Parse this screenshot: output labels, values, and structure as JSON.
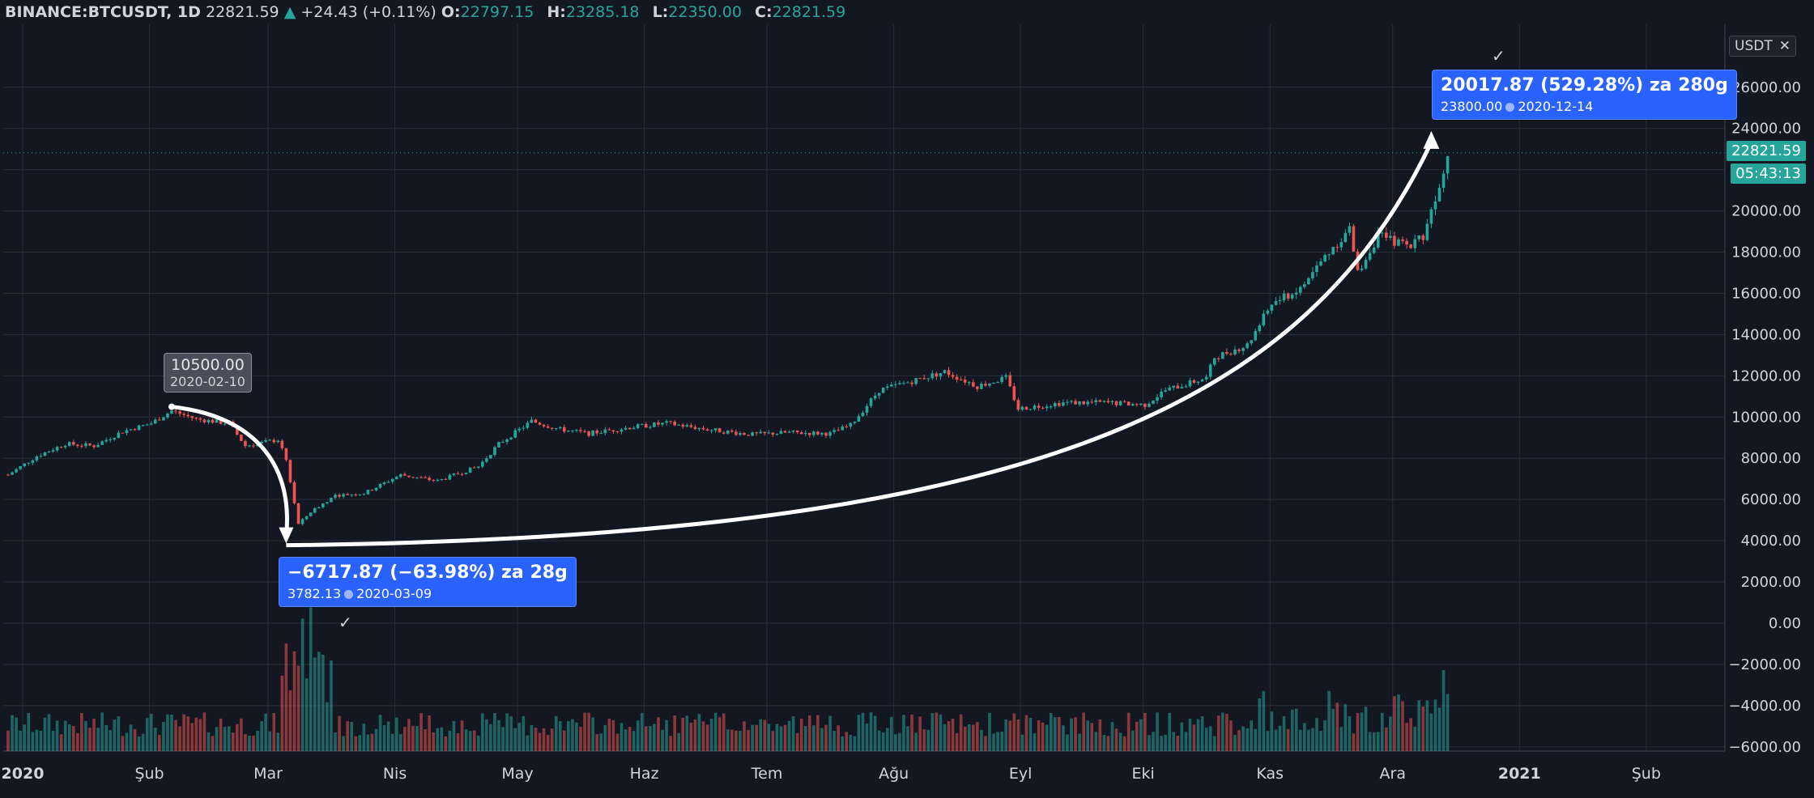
{
  "legend": {
    "symbol": "BINANCE:BTCUSDT, 1D",
    "last": "22821.59",
    "change": "+24.43 (+0.11%)",
    "open_key": "O:",
    "open": "22797.15",
    "high_key": "H:",
    "high": "23285.18",
    "low_key": "L:",
    "low": "22350.00",
    "close_key": "C:",
    "close": "22821.59"
  },
  "currency_button": {
    "label": "USDT",
    "close": "✕"
  },
  "colors": {
    "background": "#131722",
    "up": "#26a69a",
    "down": "#ef5350",
    "grid": "#2a2e39",
    "measure": "#2962ff",
    "arrow": "#ffffff"
  },
  "markers": {
    "high": {
      "price": "10500.00",
      "date": "2020-02-10"
    },
    "drop": {
      "line1": "−6717.87 (−63.98%) za 28g",
      "value": "3782.13",
      "date": "2020-03-09"
    },
    "rise": {
      "line1": "20017.87 (529.28%) za 280g",
      "value": "23800.00",
      "date": "2020-12-14"
    }
  },
  "badges": {
    "last_price": "22821.59",
    "countdown": "05:43:13"
  },
  "chart_data": {
    "type": "candlestick",
    "symbol": "BINANCE:BTCUSDT",
    "interval": "1D",
    "x_tick_labels": [
      "2020",
      "Şub",
      "Mar",
      "Nis",
      "May",
      "Haz",
      "Tem",
      "Ağu",
      "Eyl",
      "Eki",
      "Kas",
      "Ara",
      "2021",
      "Şub"
    ],
    "y_tick_labels": [
      "26000.00",
      "24000.00",
      "22000.00",
      "20000.00",
      "18000.00",
      "16000.00",
      "14000.00",
      "12000.00",
      "10000.00",
      "8000.00",
      "6000.00",
      "4000.00",
      "2000.00",
      "0.00",
      "−2000.00",
      "−4000.00",
      "−6000.00"
    ],
    "ylim": [
      -6500,
      28000
    ],
    "y_top_label": "2",
    "grid": true,
    "close_series_anchors": [
      {
        "date": "2020-01-01",
        "close": 7200
      },
      {
        "date": "2020-01-08",
        "close": 8100
      },
      {
        "date": "2020-01-15",
        "close": 8700
      },
      {
        "date": "2020-01-22",
        "close": 8600
      },
      {
        "date": "2020-01-29",
        "close": 9300
      },
      {
        "date": "2020-02-05",
        "close": 9700
      },
      {
        "date": "2020-02-10",
        "close": 10300
      },
      {
        "date": "2020-02-16",
        "close": 9900
      },
      {
        "date": "2020-02-24",
        "close": 9700
      },
      {
        "date": "2020-02-28",
        "close": 8600
      },
      {
        "date": "2020-03-07",
        "close": 8900
      },
      {
        "date": "2020-03-09",
        "close": 7900
      },
      {
        "date": "2020-03-12",
        "close": 4800
      },
      {
        "date": "2020-03-15",
        "close": 5400
      },
      {
        "date": "2020-03-21",
        "close": 6200
      },
      {
        "date": "2020-03-28",
        "close": 6300
      },
      {
        "date": "2020-04-06",
        "close": 7200
      },
      {
        "date": "2020-04-15",
        "close": 6900
      },
      {
        "date": "2020-04-25",
        "close": 7600
      },
      {
        "date": "2020-04-30",
        "close": 8700
      },
      {
        "date": "2020-05-08",
        "close": 9800
      },
      {
        "date": "2020-05-15",
        "close": 9400
      },
      {
        "date": "2020-05-22",
        "close": 9200
      },
      {
        "date": "2020-06-01",
        "close": 9500
      },
      {
        "date": "2020-06-10",
        "close": 9700
      },
      {
        "date": "2020-06-20",
        "close": 9400
      },
      {
        "date": "2020-07-01",
        "close": 9150
      },
      {
        "date": "2020-07-10",
        "close": 9250
      },
      {
        "date": "2020-07-20",
        "close": 9200
      },
      {
        "date": "2020-07-25",
        "close": 9600
      },
      {
        "date": "2020-08-01",
        "close": 11300
      },
      {
        "date": "2020-08-10",
        "close": 11800
      },
      {
        "date": "2020-08-17",
        "close": 12200
      },
      {
        "date": "2020-08-25",
        "close": 11500
      },
      {
        "date": "2020-09-01",
        "close": 11900
      },
      {
        "date": "2020-09-04",
        "close": 10400
      },
      {
        "date": "2020-09-15",
        "close": 10700
      },
      {
        "date": "2020-09-25",
        "close": 10700
      },
      {
        "date": "2020-10-05",
        "close": 10600
      },
      {
        "date": "2020-10-10",
        "close": 11300
      },
      {
        "date": "2020-10-20",
        "close": 11900
      },
      {
        "date": "2020-10-22",
        "close": 12900
      },
      {
        "date": "2020-10-30",
        "close": 13500
      },
      {
        "date": "2020-11-05",
        "close": 15500
      },
      {
        "date": "2020-11-12",
        "close": 16200
      },
      {
        "date": "2020-11-18",
        "close": 17800
      },
      {
        "date": "2020-11-24",
        "close": 19100
      },
      {
        "date": "2020-11-26",
        "close": 17000
      },
      {
        "date": "2020-12-01",
        "close": 18800
      },
      {
        "date": "2020-12-08",
        "close": 18300
      },
      {
        "date": "2020-12-12",
        "close": 18800
      },
      {
        "date": "2020-12-16",
        "close": 21300
      },
      {
        "date": "2020-12-18",
        "close": 22821.59
      }
    ],
    "measurements": [
      {
        "from_date": "2020-02-10",
        "from_price": 10500.0,
        "to_date": "2020-03-09",
        "to_price": 3782.13,
        "label": "−6717.87 (−63.98%) za 28g"
      },
      {
        "from_date": "2020-03-09",
        "from_price": 3782.13,
        "to_date": "2020-12-14",
        "to_price": 23800.0,
        "label": "20017.87 (529.28%) za 280g"
      }
    ]
  }
}
